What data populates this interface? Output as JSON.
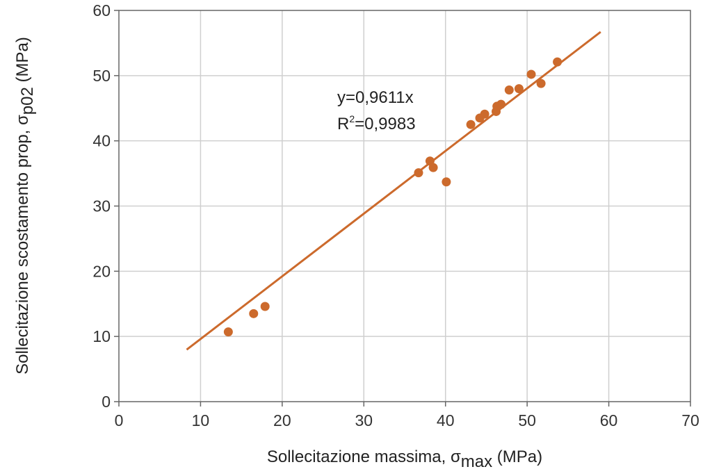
{
  "chart_data": {
    "type": "scatter",
    "title": "",
    "xlabel": "Sollecitazione massima, σmax (MPa)",
    "xlabel_parts": {
      "main": "Sollecitazione massima, σ",
      "sub": "max",
      "unit": " (MPa)"
    },
    "ylabel": "Sollecitazione scostamento prop, σp02 (MPa)",
    "ylabel_parts": {
      "main": "Sollecitazione scostamento prop, σ",
      "sub": "p02",
      "unit": " (MPa)"
    },
    "xlim": [
      0,
      70
    ],
    "ylim": [
      0,
      60
    ],
    "xticks": [
      0,
      10,
      20,
      30,
      40,
      50,
      60,
      70
    ],
    "yticks": [
      0,
      10,
      20,
      30,
      40,
      50,
      60
    ],
    "grid": true,
    "color": "#cc6a2c",
    "points": {
      "x": [
        13.4,
        16.5,
        17.9,
        36.7,
        38.1,
        38.5,
        40.1,
        43.1,
        44.2,
        44.8,
        46.2,
        46.3,
        46.8,
        47.8,
        49.0,
        50.5,
        51.7,
        53.7
      ],
      "y": [
        10.7,
        13.5,
        14.6,
        35.1,
        36.9,
        35.9,
        33.7,
        42.5,
        43.5,
        44.1,
        44.5,
        45.3,
        45.6,
        47.8,
        48.0,
        50.2,
        48.8,
        52.1
      ]
    },
    "trendline": {
      "slope": 0.9611,
      "x_range": [
        8.3,
        59.0
      ]
    },
    "annotation": {
      "equation": "y=0,9611x",
      "r2_prefix": "R",
      "r2_sup": "2",
      "r2_value": "=0,9983"
    }
  }
}
